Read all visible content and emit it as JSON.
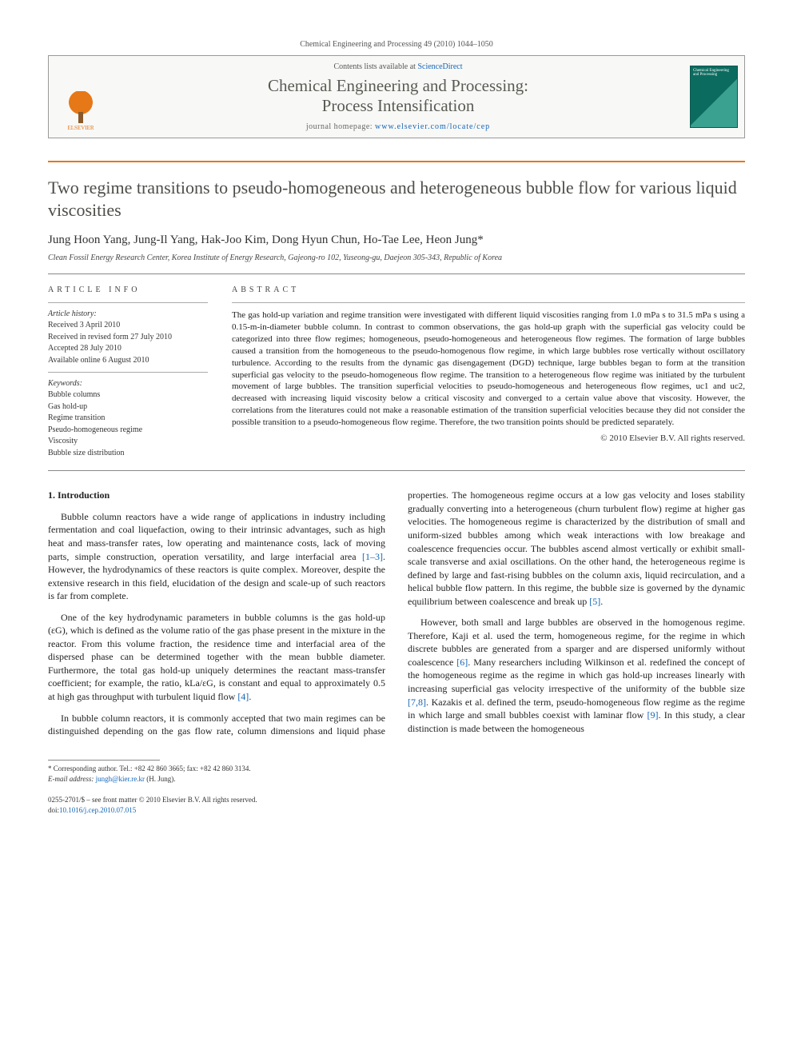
{
  "header": {
    "running": "Chemical Engineering and Processing 49 (2010) 1044–1050",
    "contents_prefix": "Contents lists available at ",
    "contents_link": "ScienceDirect",
    "journal_line1": "Chemical Engineering and Processing:",
    "journal_line2": "Process Intensification",
    "homepage_prefix": "journal homepage: ",
    "homepage_url": "www.elsevier.com/locate/cep",
    "publisher_name": "ELSEVIER",
    "cover_text": "Chemical Engineering and Processing"
  },
  "article": {
    "title": "Two regime transitions to pseudo-homogeneous and heterogeneous bubble flow for various liquid viscosities",
    "authors": "Jung Hoon Yang, Jung-Il Yang, Hak-Joo Kim, Dong Hyun Chun, Ho-Tae Lee, Heon Jung*",
    "affiliation": "Clean Fossil Energy Research Center, Korea Institute of Energy Research, Gajeong-ro 102, Yuseong-gu, Daejeon 305-343, Republic of Korea"
  },
  "info": {
    "head": "ARTICLE INFO",
    "history_label": "Article history:",
    "h1": "Received 3 April 2010",
    "h2": "Received in revised form 27 July 2010",
    "h3": "Accepted 28 July 2010",
    "h4": "Available online 6 August 2010",
    "keywords_label": "Keywords:",
    "k1": "Bubble columns",
    "k2": "Gas hold-up",
    "k3": "Regime transition",
    "k4": "Pseudo-homogeneous regime",
    "k5": "Viscosity",
    "k6": "Bubble size distribution"
  },
  "abstract": {
    "head": "ABSTRACT",
    "text": "The gas hold-up variation and regime transition were investigated with different liquid viscosities ranging from 1.0 mPa s to 31.5 mPa s using a 0.15-m-in-diameter bubble column. In contrast to common observations, the gas hold-up graph with the superficial gas velocity could be categorized into three flow regimes; homogeneous, pseudo-homogeneous and heterogeneous flow regimes. The formation of large bubbles caused a transition from the homogeneous to the pseudo-homogenous flow regime, in which large bubbles rose vertically without oscillatory turbulence. According to the results from the dynamic gas disengagement (DGD) technique, large bubbles began to form at the transition superficial gas velocity to the pseudo-homogeneous flow regime. The transition to a heterogeneous flow regime was initiated by the turbulent movement of large bubbles. The transition superficial velocities to pseudo-homogeneous and heterogeneous flow regimes, uc1 and uc2, decreased with increasing liquid viscosity below a critical viscosity and converged to a certain value above that viscosity. However, the correlations from the literatures could not make a reasonable estimation of the transition superficial velocities because they did not consider the possible transition to a pseudo-homogeneous flow regime. Therefore, the two transition points should be predicted separately.",
    "copyright": "© 2010 Elsevier B.V. All rights reserved."
  },
  "body": {
    "sec1": "1.  Introduction",
    "p1a": "Bubble column reactors have a wide range of applications in industry including fermentation and coal liquefaction, owing to their intrinsic advantages, such as high heat and mass-transfer rates, low operating and maintenance costs, lack of moving parts, simple construction, operation versatility, and large interfacial area ",
    "p1_ref": "[1–3]",
    "p1b": ". However, the hydrodynamics of these reactors is quite complex. Moreover, despite the extensive research in this field, elucidation of the design and scale-up of such reactors is far from complete.",
    "p2a": "One of the key hydrodynamic parameters in bubble columns is the gas hold-up (εG), which is defined as the volume ratio of the gas phase present in the mixture in the reactor. From this volume fraction, the residence time and interfacial area of the dispersed phase can be determined together with the mean bubble diameter. Furthermore, the total gas hold-up uniquely determines the reactant mass-transfer coefficient; for example, the ratio, kLa/εG, is constant and equal to approximately 0.5 at high gas throughput with turbulent liquid flow ",
    "p2_ref": "[4]",
    "p2b": ".",
    "p3a": "In bubble column reactors, it is commonly accepted that two main regimes can be distinguished depending on the gas flow rate, column dimensions and liquid phase properties. The homogeneous regime occurs at a low gas velocity and loses stability gradually converting into a heterogeneous (churn turbulent flow) regime at higher gas velocities. The homogeneous regime is characterized by the distribution of small and uniform-sized bubbles among which weak interactions with low breakage and coalescence frequencies occur. The bubbles ascend almost vertically or exhibit small-scale transverse and axial oscillations. On the other hand, the heterogeneous regime is defined by large and fast-rising bubbles on the column axis, liquid recirculation, and a helical bubble flow pattern. In this regime, the bubble size is governed by the dynamic equilibrium between coalescence and break up ",
    "p3_ref": "[5]",
    "p3b": ".",
    "p4a": "However, both small and large bubbles are observed in the homogenous regime. Therefore, Kaji et al. used the term, homogeneous regime, for the regime in which discrete bubbles are generated from a sparger and are dispersed uniformly without coalescence ",
    "p4_ref1": "[6]",
    "p4b": ". Many researchers including Wilkinson et al. redefined the concept of the homogeneous regime as the regime in which gas hold-up increases linearly with increasing superficial gas velocity irrespective of the uniformity of the bubble size ",
    "p4_ref2": "[7,8]",
    "p4c": ". Kazakis et al. defined the term, pseudo-homogeneous flow regime as the regime in which large and small bubbles coexist with laminar flow ",
    "p4_ref3": "[9]",
    "p4d": ". In this study, a clear distinction is made between the homogeneous"
  },
  "footer": {
    "corr": "* Corresponding author. Tel.: +82 42 860 3665; fax: +82 42 860 3134.",
    "email_label": "E-mail address: ",
    "email": "jungh@kier.re.kr",
    "email_who": " (H. Jung).",
    "issn": "0255-2701/$ – see front matter © 2010 Elsevier B.V. All rights reserved.",
    "doi_label": "doi:",
    "doi": "10.1016/j.cep.2010.07.015"
  },
  "colors": {
    "link": "#1465b7",
    "orange": "#e67817",
    "rule": "#888888"
  }
}
